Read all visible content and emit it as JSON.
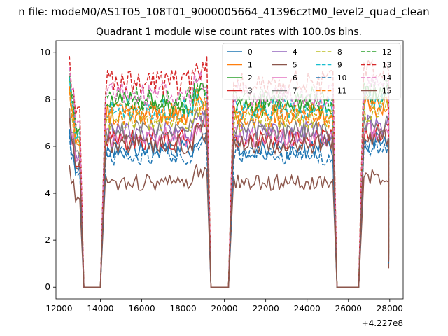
{
  "figure": {
    "suptitle": "n file: modeM0/AS1T05_108T01_9000005664_41396cztM0_level2_quad_clean"
  },
  "chart_data": {
    "type": "line",
    "title": "Quadrant 1 module wise count rates with 100.0s bins.",
    "xlabel": "",
    "ylabel": "",
    "x_offset_label": "+4.227e8",
    "xlim": [
      11850,
      28650
    ],
    "ylim": [
      -0.5,
      10.5
    ],
    "x_ticks": [
      12000,
      14000,
      16000,
      18000,
      20000,
      22000,
      24000,
      26000,
      28000
    ],
    "x_tick_labels": [
      "12000",
      "14000",
      "16000",
      "18000",
      "20000",
      "22000",
      "24000",
      "26000",
      "28000"
    ],
    "y_ticks": [
      0,
      2,
      4,
      6,
      8,
      10
    ],
    "y_tick_labels": [
      "0",
      "2",
      "4",
      "6",
      "8",
      "10"
    ],
    "grid": false,
    "legend_position": "upper-right",
    "legend_columns": 4,
    "segments": [
      [
        12500,
        13000
      ],
      [
        14250,
        19150
      ],
      [
        20450,
        25250
      ],
      [
        26750,
        27950
      ]
    ],
    "bin_seconds": 100,
    "series": [
      {
        "name": "0",
        "color": "#1f77b4",
        "style": "solid",
        "level": 5.9
      },
      {
        "name": "1",
        "color": "#ff7f0e",
        "style": "solid",
        "level": 7.4
      },
      {
        "name": "2",
        "color": "#2ca02c",
        "style": "solid",
        "level": 7.8
      },
      {
        "name": "3",
        "color": "#d62728",
        "style": "solid",
        "level": 6.3
      },
      {
        "name": "4",
        "color": "#9467bd",
        "style": "solid",
        "level": 6.6
      },
      {
        "name": "5",
        "color": "#8c564b",
        "style": "solid",
        "level": 4.45
      },
      {
        "name": "6",
        "color": "#e377c2",
        "style": "solid",
        "level": 6.4
      },
      {
        "name": "7",
        "color": "#7f7f7f",
        "style": "solid",
        "level": 6.7
      },
      {
        "name": "8",
        "color": "#bcbd22",
        "style": "dashed",
        "level": 7.1
      },
      {
        "name": "9",
        "color": "#17becf",
        "style": "dashed",
        "level": 7.6
      },
      {
        "name": "10",
        "color": "#1f77b4",
        "style": "dashed",
        "level": 5.6
      },
      {
        "name": "11",
        "color": "#ff7f0e",
        "style": "dashed",
        "level": 7.3
      },
      {
        "name": "12",
        "color": "#2ca02c",
        "style": "dashed",
        "level": 8.0
      },
      {
        "name": "13",
        "color": "#d62728",
        "style": "dashed",
        "level": 8.7
      },
      {
        "name": "14",
        "color": "#e377c2",
        "style": "dashed",
        "level": 8.2
      },
      {
        "name": "15",
        "color": "#8c564b",
        "style": "solid",
        "level": 6.1
      }
    ]
  }
}
